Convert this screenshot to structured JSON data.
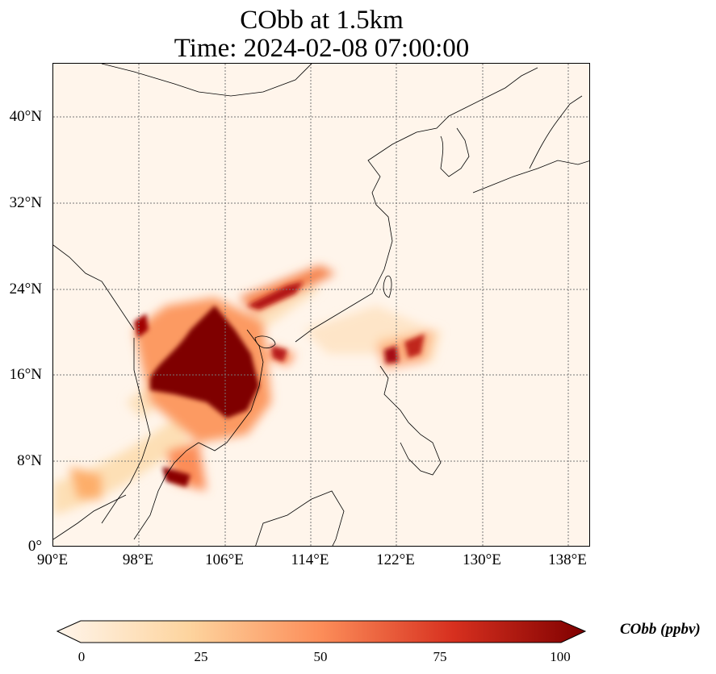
{
  "title": {
    "line1": "CObb at 1.5km",
    "line2": "Time: 2024-02-08 07:00:00"
  },
  "axes": {
    "lon_labels": [
      "90°E",
      "98°E",
      "106°E",
      "114°E",
      "122°E",
      "130°E",
      "138°E"
    ],
    "lat_labels": [
      "40°N",
      "32°N",
      "24°N",
      "16°N",
      "8°N",
      "0°"
    ]
  },
  "colorbar": {
    "label": "CObb (ppbv)",
    "ticks": [
      "0",
      "25",
      "50",
      "75",
      "100"
    ],
    "colors": [
      "#fff5eb",
      "#fdd49e",
      "#fc8d59",
      "#d7301f",
      "#7f0000"
    ]
  }
}
